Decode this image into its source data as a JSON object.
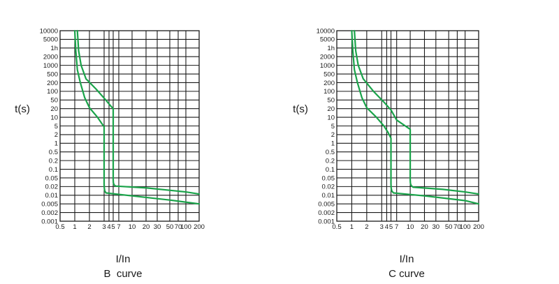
{
  "chart_data": [
    {
      "type": "line",
      "title": "B  curve",
      "xlabel": "I/In",
      "ylabel": "t(s)",
      "x_scale": "log",
      "y_scale": "log",
      "xlim": [
        0.5,
        200
      ],
      "ylim": [
        0.001,
        10000
      ],
      "grid": true,
      "x_ticks": [
        "0.5",
        "1",
        "2",
        "3",
        "4",
        "5",
        "7",
        "10",
        "20",
        "30",
        "50",
        "70",
        "100",
        "200"
      ],
      "y_ticks": [
        "10000",
        "5000",
        "1h",
        "2000",
        "1000",
        "500",
        "200",
        "100",
        "50",
        "20",
        "10",
        "5",
        "2",
        "1",
        "0.5",
        "0.2",
        "0.1",
        "0.05",
        "0.02",
        "0.01",
        "0.005",
        "0.002",
        "0.001"
      ],
      "line_color": "#1aa34a",
      "series": [
        {
          "x": [
            1.0,
            1.05,
            1.13,
            1.3,
            1.6,
            2.0,
            2.5,
            3.0,
            3.0,
            3.03,
            3.12,
            3.35,
            10,
            50,
            200
          ],
          "y": [
            10000,
            3000,
            700,
            200,
            60,
            22,
            10,
            4.5,
            0.026,
            0.018,
            0.014,
            0.012,
            0.0095,
            0.0068,
            0.005
          ]
        },
        {
          "x": [
            1.13,
            1.2,
            1.35,
            1.7,
            2.4,
            3.3,
            4.5,
            5.0,
            5.0,
            5.05,
            5.25,
            5.8,
            20,
            100,
            200
          ],
          "y": [
            10000,
            3000,
            1000,
            300,
            120,
            50,
            25,
            20,
            0.04,
            0.03,
            0.024,
            0.021,
            0.018,
            0.013,
            0.011
          ]
        }
      ]
    },
    {
      "type": "line",
      "title": "C curve",
      "xlabel": "I/In",
      "ylabel": "t(s)",
      "x_scale": "log",
      "y_scale": "log",
      "xlim": [
        0.5,
        200
      ],
      "ylim": [
        0.001,
        10000
      ],
      "grid": true,
      "x_ticks": [
        "0.5",
        "1",
        "2",
        "3",
        "4",
        "5",
        "7",
        "10",
        "20",
        "30",
        "50",
        "70",
        "100",
        "200"
      ],
      "y_ticks": [
        "10000",
        "5000",
        "1h",
        "2000",
        "1000",
        "500",
        "200",
        "100",
        "50",
        "20",
        "10",
        "5",
        "2",
        "1",
        "0.5",
        "0.2",
        "0.1",
        "0.05",
        "0.02",
        "0.01",
        "0.005",
        "0.002",
        "0.001"
      ],
      "line_color": "#1aa34a",
      "series": [
        {
          "x": [
            1.0,
            1.05,
            1.13,
            1.3,
            1.6,
            2.0,
            2.6,
            3.4,
            4.3,
            5.0,
            5.0,
            5.05,
            5.25,
            5.8,
            20,
            100,
            200
          ],
          "y": [
            10000,
            3000,
            700,
            200,
            60,
            22,
            10,
            5,
            2.5,
            1.5,
            0.026,
            0.018,
            0.014,
            0.012,
            0.0095,
            0.0065,
            0.005
          ]
        },
        {
          "x": [
            1.13,
            1.2,
            1.35,
            1.7,
            2.4,
            3.4,
            5.0,
            7.0,
            10,
            10,
            10.1,
            10.5,
            11.5,
            40,
            100,
            200
          ],
          "y": [
            10000,
            3000,
            1000,
            300,
            100,
            40,
            18,
            8,
            3.5,
            0.04,
            0.028,
            0.022,
            0.019,
            0.016,
            0.013,
            0.011
          ]
        }
      ]
    }
  ]
}
